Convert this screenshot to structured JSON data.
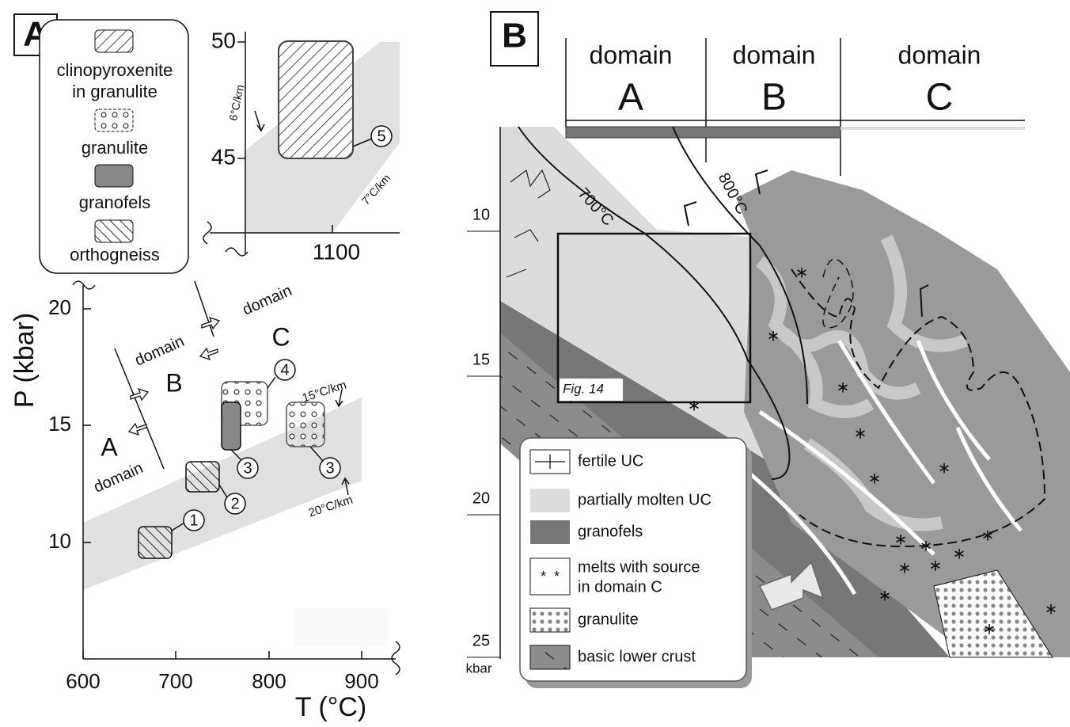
{
  "panel_a": {
    "label": "A",
    "legend": [
      {
        "lines": [
          "clinopyroxenite",
          "in granulite"
        ]
      },
      {
        "lines": [
          "granulite"
        ]
      },
      {
        "lines": [
          "granofels"
        ]
      },
      {
        "lines": [
          "orthogneiss"
        ]
      }
    ],
    "inset": {
      "y_ticks": [
        50,
        45
      ],
      "x_ticks": [
        1100
      ],
      "gradients": [
        "6°C/km",
        "7°C/km"
      ],
      "sample": 5
    },
    "x_axis": {
      "title": "T (°C)",
      "ticks": [
        600,
        700,
        800,
        900
      ]
    },
    "y_axis": {
      "title": "P (kbar)",
      "ticks": [
        10,
        15,
        20
      ]
    },
    "gradients": [
      "15°C/km",
      "20°C/km"
    ],
    "domains": [
      {
        "word": "domain",
        "letter": "A"
      },
      {
        "word": "domain",
        "letter": "B"
      },
      {
        "word": "domain",
        "letter": "C"
      }
    ],
    "samples": [
      1,
      2,
      3,
      3,
      4
    ]
  },
  "panel_b": {
    "label": "B",
    "domains": [
      {
        "word": "domain",
        "letter": "A"
      },
      {
        "word": "domain",
        "letter": "B"
      },
      {
        "word": "domain",
        "letter": "C"
      }
    ],
    "isotherms": [
      "700°C",
      "800°C"
    ],
    "y_axis": {
      "ticks": [
        10,
        15,
        20,
        25
      ],
      "unit": "kbar"
    },
    "inset_label": "Fig. 14",
    "legend": [
      {
        "lines": [
          "fertile UC"
        ]
      },
      {
        "lines": [
          "partially molten UC"
        ]
      },
      {
        "lines": [
          "granofels"
        ]
      },
      {
        "lines": [
          "melts with source",
          "in domain C"
        ]
      },
      {
        "lines": [
          "granulite"
        ]
      },
      {
        "lines": [
          "basic lower crust"
        ]
      }
    ]
  }
}
